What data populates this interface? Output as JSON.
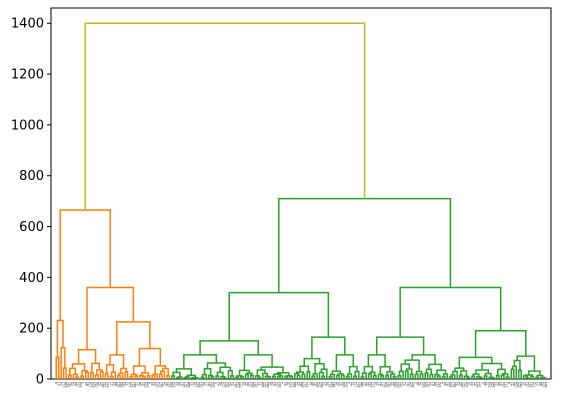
{
  "chart_data": {
    "type": "dendrogram",
    "title": "",
    "xlabel": "",
    "ylabel": "",
    "ylim": [
      0,
      1460
    ],
    "y_ticks": [
      0,
      200,
      400,
      600,
      800,
      1000,
      1200,
      1400
    ],
    "y_tick_labels": [
      "0",
      "200",
      "400",
      "600",
      "800",
      "1000",
      "1200",
      "1400"
    ],
    "leaf_count": 200,
    "root_height": 1400,
    "root_color": "#bcbd22",
    "clusters": [
      {
        "color": "#ff7f0e",
        "leaf_range": [
          0,
          47
        ],
        "merges": [
          {
            "height": 665,
            "children": [
              "A1",
              "A2"
            ]
          },
          {
            "height": 360,
            "children": [
              "A2a",
              "A2b"
            ]
          },
          {
            "height": 225,
            "children": [
              "A2b1",
              "A2b2"
            ]
          }
        ],
        "sub_heights": [
          230,
          100,
          115,
          60,
          35,
          95,
          120,
          70,
          40,
          25
        ]
      },
      {
        "color": "#2ca02c",
        "leaf_range": [
          47,
          200
        ],
        "merges": [
          {
            "height": 710,
            "children": [
              "B1",
              "B2"
            ]
          },
          {
            "height": 340,
            "children": [
              "B1a",
              "B1b"
            ]
          },
          {
            "height": 360,
            "children": [
              "B2a",
              "B2b"
            ]
          },
          {
            "height": 150,
            "children": [
              "B1a1",
              "B1a2"
            ]
          },
          {
            "height": 165,
            "children": [
              "B1b1",
              "B1b2"
            ]
          },
          {
            "height": 165,
            "children": [
              "B2a1",
              "B2a2"
            ]
          },
          {
            "height": 190,
            "children": [
              "B2b1",
              "B2b2"
            ]
          }
        ],
        "sub_heights": [
          95,
          60,
          45,
          80,
          95,
          50,
          95,
          60,
          85,
          90,
          65,
          50
        ]
      }
    ]
  }
}
